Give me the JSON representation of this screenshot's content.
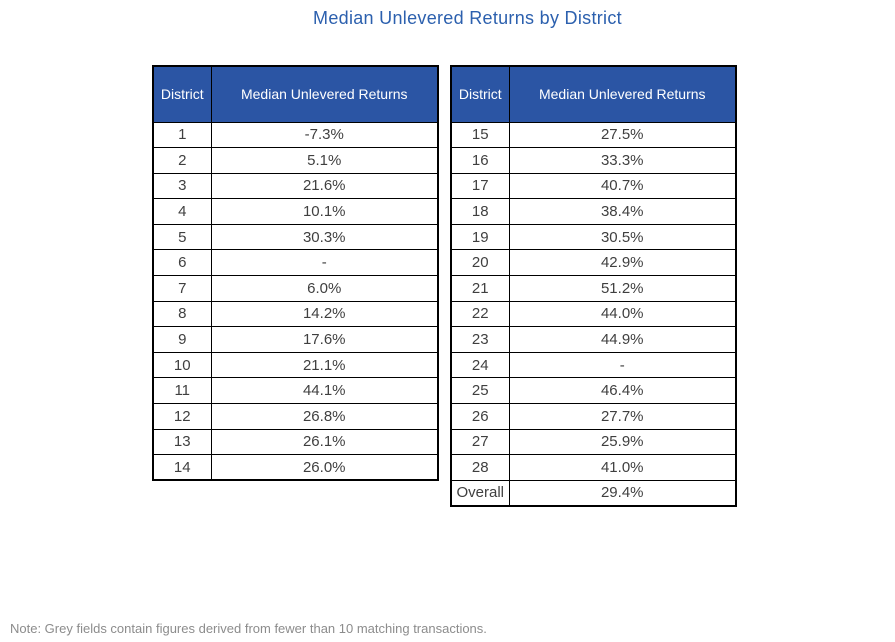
{
  "title": "Median Unlevered Returns by District",
  "note": "Note: Grey fields contain figures derived from fewer than 10 matching transactions.",
  "colors": {
    "header_bg": "#2B55A4",
    "title_text": "#2C60AE",
    "light_grey_cell": "#E9E9E9",
    "dark_grey_cell": "#A6A6A6",
    "border": "#000000",
    "body_text": "#3F3F3F",
    "note_text": "#8C8C8C"
  },
  "chart_data": {
    "type": "table",
    "title": "Median Unlevered Returns by District",
    "columns": [
      "District",
      "Median Unlevered Returns"
    ],
    "note": "Note: Grey fields contain figures derived from fewer than 10 matching transactions.",
    "shading_legend": {
      "light": "figure derived from fewer than 10 matching transactions",
      "dark": "no figure available (fewer than 10 matching transactions)"
    },
    "tables": [
      {
        "rows": [
          {
            "district": "1",
            "value": "-7.3%",
            "shade": "light"
          },
          {
            "district": "2",
            "value": "5.1%",
            "shade": "light"
          },
          {
            "district": "3",
            "value": "21.6%",
            "shade": "none"
          },
          {
            "district": "4",
            "value": "10.1%",
            "shade": "none"
          },
          {
            "district": "5",
            "value": "30.3%",
            "shade": "none"
          },
          {
            "district": "6",
            "value": "-",
            "shade": "dark"
          },
          {
            "district": "7",
            "value": "6.0%",
            "shade": "light"
          },
          {
            "district": "8",
            "value": "14.2%",
            "shade": "none"
          },
          {
            "district": "9",
            "value": "17.6%",
            "shade": "none"
          },
          {
            "district": "10",
            "value": "21.1%",
            "shade": "none"
          },
          {
            "district": "11",
            "value": "44.1%",
            "shade": "none"
          },
          {
            "district": "12",
            "value": "26.8%",
            "shade": "none"
          },
          {
            "district": "13",
            "value": "26.1%",
            "shade": "none"
          },
          {
            "district": "14",
            "value": "26.0%",
            "shade": "none"
          }
        ]
      },
      {
        "rows": [
          {
            "district": "15",
            "value": "27.5%",
            "shade": "none"
          },
          {
            "district": "16",
            "value": "33.3%",
            "shade": "none"
          },
          {
            "district": "17",
            "value": "40.7%",
            "shade": "none"
          },
          {
            "district": "18",
            "value": "38.4%",
            "shade": "none"
          },
          {
            "district": "19",
            "value": "30.5%",
            "shade": "none"
          },
          {
            "district": "20",
            "value": "42.9%",
            "shade": "none"
          },
          {
            "district": "21",
            "value": "51.2%",
            "shade": "none"
          },
          {
            "district": "22",
            "value": "44.0%",
            "shade": "none"
          },
          {
            "district": "23",
            "value": "44.9%",
            "shade": "none"
          },
          {
            "district": "24",
            "value": "-",
            "shade": "dark"
          },
          {
            "district": "25",
            "value": "46.4%",
            "shade": "light"
          },
          {
            "district": "26",
            "value": "27.7%",
            "shade": "light"
          },
          {
            "district": "27",
            "value": "25.9%",
            "shade": "none"
          },
          {
            "district": "28",
            "value": "41.0%",
            "shade": "none"
          },
          {
            "district": "Overall",
            "value": "29.4%",
            "shade": "none"
          }
        ]
      }
    ]
  }
}
